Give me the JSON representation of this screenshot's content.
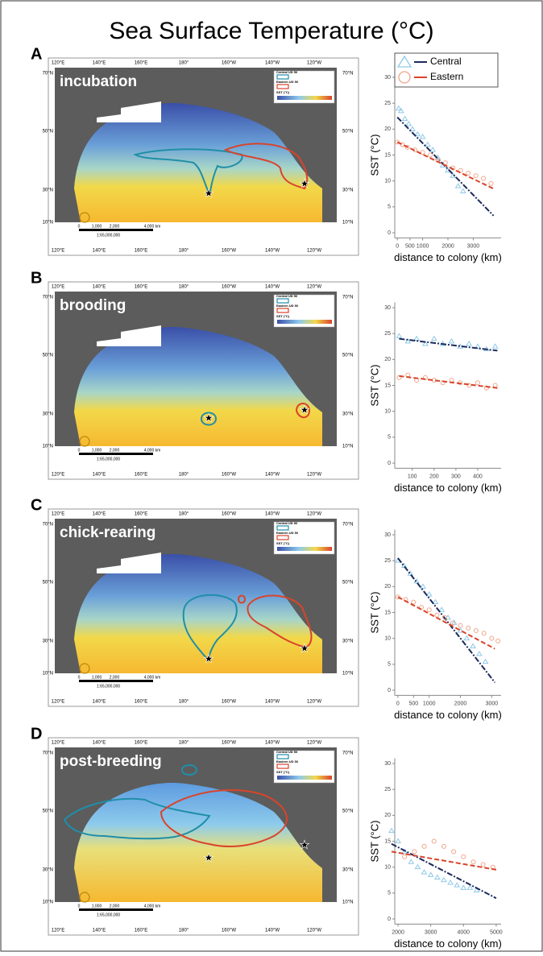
{
  "title": "Sea Surface Temperature (°C)",
  "map_labels": {
    "lon": [
      "120°E",
      "140°E",
      "160°E",
      "180°",
      "160°W",
      "140°W",
      "120°W"
    ],
    "lat": [
      "70°N",
      "50°N",
      "30°N",
      "10°N"
    ],
    "legend": [
      "Central UD 50",
      "Eastern UD 50",
      "SST (°C)"
    ],
    "scale": [
      "0",
      "1,000",
      "2,000",
      "4,000",
      "km"
    ],
    "ratio": "1:65,000,000"
  },
  "panels": [
    {
      "letter": "A",
      "stage": "incubation"
    },
    {
      "letter": "B",
      "stage": "brooding"
    },
    {
      "letter": "C",
      "stage": "chick-rearing"
    },
    {
      "letter": "D",
      "stage": "post-breeding"
    }
  ],
  "chart_data": [
    {
      "type": "scatter",
      "ylabel": "SST (°C)",
      "xlabel": "distance to colony (km)",
      "xlim": [
        -100,
        4100
      ],
      "ylim": [
        -1,
        31
      ],
      "xticks": [
        0,
        500,
        1000,
        2000,
        3000
      ],
      "yticks": [
        0,
        5,
        10,
        15,
        20,
        25,
        30
      ],
      "legend": "top-right",
      "series": [
        {
          "name": "Central",
          "color": "#8ec9e8",
          "marker": "triangle",
          "x": [
            50,
            150,
            300,
            450,
            600,
            800,
            1000,
            1200,
            1400,
            1600,
            1800,
            2000,
            2200,
            2400,
            2600
          ],
          "values": [
            24,
            23.5,
            22,
            21,
            20,
            19,
            18.5,
            17,
            16,
            14.5,
            13,
            12,
            11,
            9,
            8
          ],
          "trend": {
            "color": "#1b2a5c",
            "x": [
              0,
              3800
            ],
            "values": [
              22.3,
              3.3
            ]
          }
        },
        {
          "name": "Eastern",
          "color": "#f0a58a",
          "marker": "circle",
          "x": [
            0,
            200,
            400,
            700,
            1000,
            1300,
            1600,
            1900,
            2200,
            2500,
            2800,
            3100,
            3400,
            3700
          ],
          "values": [
            17.5,
            17,
            16.5,
            16,
            15.5,
            15,
            14,
            13.5,
            12.5,
            12,
            11.5,
            11,
            10.5,
            9.5
          ],
          "trend": {
            "color": "#d9442b",
            "x": [
              0,
              3800
            ],
            "values": [
              17.5,
              8.5
            ]
          }
        }
      ]
    },
    {
      "type": "scatter",
      "ylabel": "SST (°C)",
      "xlabel": "distance to colony (km)",
      "xlim": [
        20,
        507
      ],
      "ylim": [
        -1,
        31
      ],
      "xticks": [
        100,
        200,
        300,
        400
      ],
      "yticks": [
        0,
        5,
        10,
        15,
        20,
        25,
        30
      ],
      "series": [
        {
          "color": "#8ec9e8",
          "marker": "triangle",
          "x": [
            40,
            80,
            120,
            160,
            200,
            240,
            280,
            320,
            360,
            400,
            440,
            480
          ],
          "values": [
            24.5,
            23.5,
            24,
            23,
            24,
            23,
            23.5,
            22.5,
            23,
            22.5,
            22,
            22.5
          ],
          "trend": {
            "color": "#1b2a5c",
            "x": [
              40,
              490
            ],
            "values": [
              24,
              21.7
            ]
          }
        },
        {
          "color": "#f0a58a",
          "marker": "circle",
          "x": [
            40,
            80,
            120,
            160,
            200,
            240,
            280,
            320,
            360,
            400,
            440,
            480
          ],
          "values": [
            16.5,
            17,
            16,
            16.5,
            16,
            15.5,
            16,
            15.5,
            15,
            15.5,
            14.5,
            15
          ],
          "trend": {
            "color": "#d9442b",
            "x": [
              40,
              490
            ],
            "values": [
              16.8,
              14.5
            ]
          }
        }
      ]
    },
    {
      "type": "scatter",
      "ylabel": "SST (°C)",
      "xlabel": "distance to colony (km)",
      "xlim": [
        -100,
        3300
      ],
      "ylim": [
        -1,
        31
      ],
      "xticks": [
        0,
        500,
        1000,
        2000,
        3000
      ],
      "yticks": [
        0,
        5,
        10,
        15,
        20,
        25,
        30
      ],
      "series": [
        {
          "color": "#8ec9e8",
          "marker": "triangle",
          "x": [
            0,
            200,
            400,
            600,
            800,
            1000,
            1200,
            1400,
            1600,
            1800,
            2000,
            2200,
            2400,
            2600,
            2800
          ],
          "values": [
            25,
            24,
            22.5,
            21,
            20,
            18.5,
            17,
            15.5,
            14,
            13,
            11.5,
            10,
            8.5,
            7,
            5.5
          ],
          "trend": {
            "color": "#1b2a5c",
            "x": [
              0,
              3100
            ],
            "values": [
              25.5,
              1.5
            ]
          }
        },
        {
          "color": "#f0a58a",
          "marker": "circle",
          "x": [
            0,
            250,
            500,
            750,
            1000,
            1250,
            1500,
            1750,
            2000,
            2250,
            2500,
            2750,
            3000,
            3200
          ],
          "values": [
            18,
            17.5,
            17,
            16,
            15.5,
            14.5,
            14,
            13,
            12.5,
            12,
            11.5,
            11,
            10,
            9.5
          ],
          "trend": {
            "color": "#d9442b",
            "x": [
              0,
              3100
            ],
            "values": [
              18,
              8
            ]
          }
        }
      ]
    },
    {
      "type": "scatter",
      "ylabel": "SST (°C)",
      "xlabel": "distance to colony (km)",
      "xlim": [
        1900,
        5150
      ],
      "ylim": [
        -1,
        31
      ],
      "xticks": [
        2000,
        3000,
        4000,
        5000
      ],
      "yticks": [
        0,
        5,
        10,
        15,
        20,
        25,
        30
      ],
      "series": [
        {
          "color": "#8ec9e8",
          "marker": "triangle",
          "x": [
            1800,
            2000,
            2200,
            2400,
            2600,
            2800,
            3000,
            3200,
            3400,
            3600,
            3800,
            4000,
            4200,
            4400
          ],
          "values": [
            17,
            15,
            13,
            11,
            10,
            9,
            8.5,
            8,
            7.5,
            7,
            6.5,
            6,
            6,
            5.5
          ],
          "trend": {
            "color": "#1b2a5c",
            "x": [
              1800,
              5000
            ],
            "values": [
              14.5,
              4
            ]
          }
        },
        {
          "color": "#f0a58a",
          "marker": "circle",
          "x": [
            2200,
            2500,
            2800,
            3100,
            3400,
            3700,
            4000,
            4300,
            4600,
            4900
          ],
          "values": [
            12,
            13,
            14,
            15,
            14,
            13,
            12,
            11,
            10.5,
            10
          ],
          "trend": {
            "color": "#d9442b",
            "x": [
              1800,
              5000
            ],
            "values": [
              13,
              9.5
            ]
          }
        }
      ]
    }
  ]
}
